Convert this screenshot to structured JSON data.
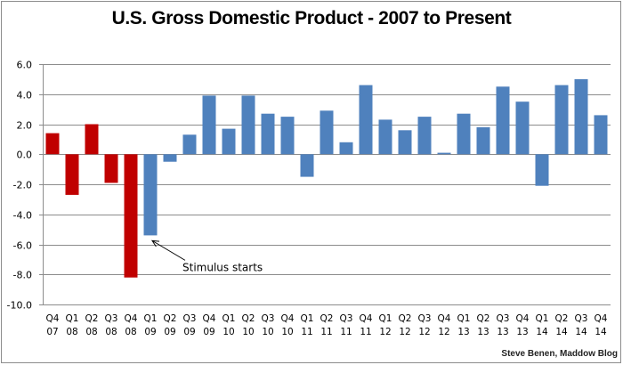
{
  "chart_data": {
    "type": "bar",
    "title": "U.S. Gross Domestic Product - 2007 to Present",
    "xlabel": "",
    "ylabel": "",
    "ylim": [
      -10.0,
      6.0
    ],
    "yticks": [
      "6.0",
      "4.0",
      "2.0",
      "0.0",
      "-2.0",
      "-4.0",
      "-6.0",
      "-8.0",
      "-10.0"
    ],
    "ytick_values": [
      6,
      4,
      2,
      0,
      -2,
      -4,
      -6,
      -8,
      -10
    ],
    "grid": true,
    "legend": "none",
    "categories": [
      {
        "quarter": "Q4",
        "year": "07"
      },
      {
        "quarter": "Q1",
        "year": "08"
      },
      {
        "quarter": "Q2",
        "year": "08"
      },
      {
        "quarter": "Q3",
        "year": "08"
      },
      {
        "quarter": "Q4",
        "year": "08"
      },
      {
        "quarter": "Q1",
        "year": "09"
      },
      {
        "quarter": "Q2",
        "year": "09"
      },
      {
        "quarter": "Q3",
        "year": "09"
      },
      {
        "quarter": "Q4",
        "year": "09"
      },
      {
        "quarter": "Q1",
        "year": "10"
      },
      {
        "quarter": "Q2",
        "year": "10"
      },
      {
        "quarter": "Q3",
        "year": "10"
      },
      {
        "quarter": "Q4",
        "year": "10"
      },
      {
        "quarter": "Q1",
        "year": "11"
      },
      {
        "quarter": "Q2",
        "year": "11"
      },
      {
        "quarter": "Q3",
        "year": "11"
      },
      {
        "quarter": "Q4",
        "year": "11"
      },
      {
        "quarter": "Q1",
        "year": "12"
      },
      {
        "quarter": "Q2",
        "year": "12"
      },
      {
        "quarter": "Q3",
        "year": "12"
      },
      {
        "quarter": "Q4",
        "year": "12"
      },
      {
        "quarter": "Q1",
        "year": "13"
      },
      {
        "quarter": "Q2",
        "year": "13"
      },
      {
        "quarter": "Q3",
        "year": "13"
      },
      {
        "quarter": "Q4",
        "year": "13"
      },
      {
        "quarter": "Q1",
        "year": "14"
      },
      {
        "quarter": "Q2",
        "year": "14"
      },
      {
        "quarter": "Q3",
        "year": "14"
      },
      {
        "quarter": "Q4",
        "year": "14"
      }
    ],
    "values": [
      1.4,
      -2.7,
      2.0,
      -1.9,
      -8.2,
      -5.4,
      -0.5,
      1.3,
      3.9,
      1.7,
      3.9,
      2.7,
      2.5,
      -1.5,
      2.9,
      0.8,
      4.6,
      2.3,
      1.6,
      2.5,
      0.1,
      2.7,
      1.8,
      4.5,
      3.5,
      -2.1,
      4.6,
      5.0,
      2.6
    ],
    "series_colors": {
      "before_stimulus": "#C00000",
      "after_stimulus": "#4F81BD"
    },
    "highlight_count": 5,
    "annotation": {
      "text": "Stimulus starts",
      "points_to_index": 5
    },
    "credit": "Steve Benen, Maddow Blog"
  },
  "colors": {
    "grid": "#8c8c8c",
    "axis": "#8c8c8c",
    "border": "#8c8c8c"
  }
}
